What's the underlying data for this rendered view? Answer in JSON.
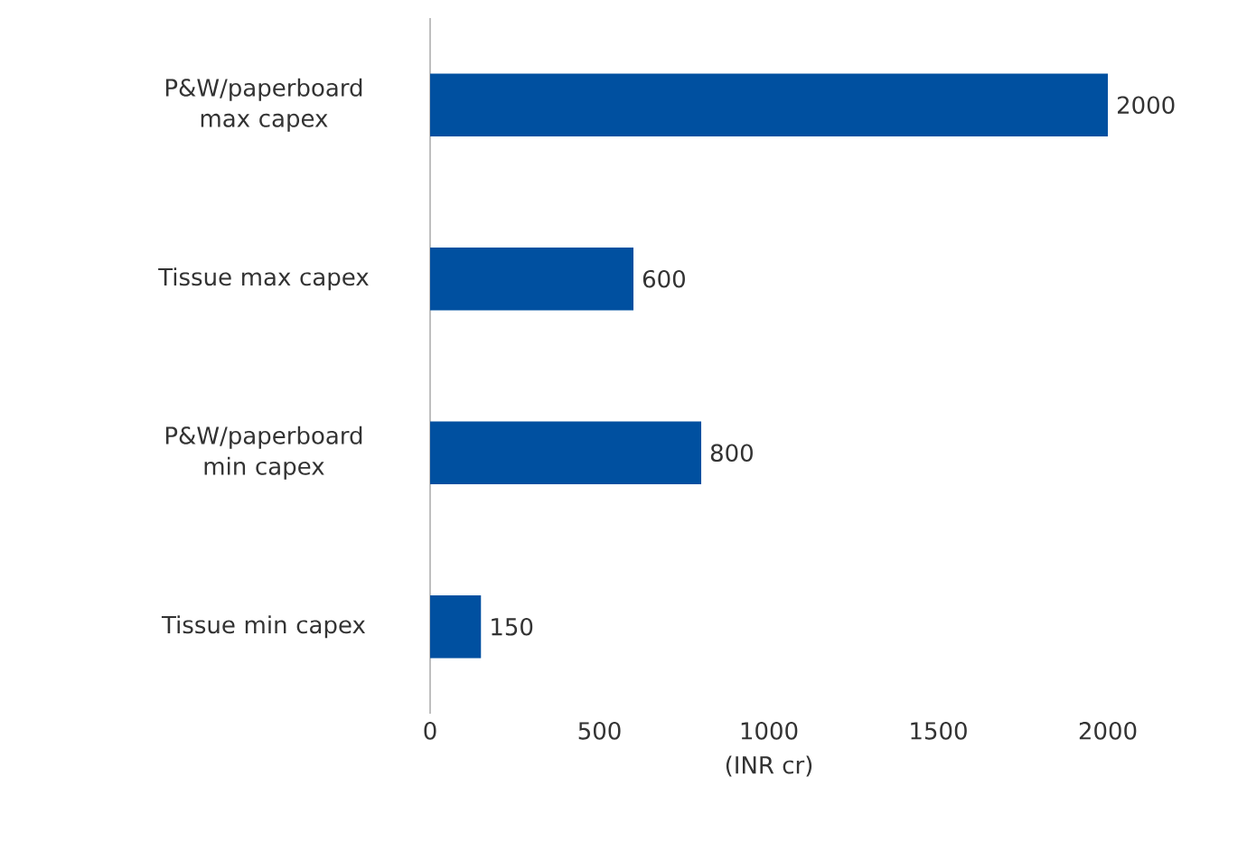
{
  "chart_data": {
    "type": "bar",
    "orientation": "horizontal",
    "xlabel": "(INR cr)",
    "categories": [
      "P&W/paperboard max capex",
      "Tissue max capex",
      "P&W/paperboard min capex",
      "Tissue min capex"
    ],
    "values": [
      2000,
      600,
      800,
      150
    ],
    "color": "#0050a0",
    "xlim": [
      0,
      2000
    ],
    "xticks": [
      0,
      500,
      1000,
      1500,
      2000
    ],
    "grid": false,
    "data_labels": true
  }
}
